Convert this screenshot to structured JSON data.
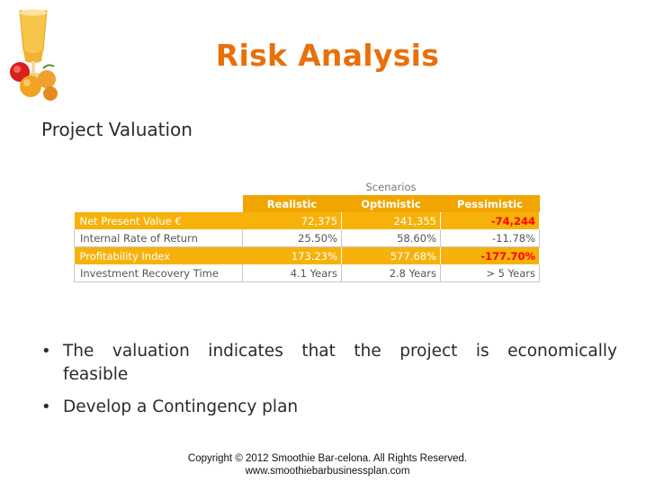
{
  "slide": {
    "title": "Risk Analysis",
    "subtitle": "Project Valuation"
  },
  "table": {
    "group_header": "Scenarios",
    "columns": [
      "Realistic",
      "Optimistic",
      "Pessimistic"
    ],
    "rows": [
      {
        "label": "Net Present Value €",
        "values": [
          "72,375",
          "241,355",
          "-74,244"
        ],
        "style": "orange"
      },
      {
        "label": "Internal Rate of Return",
        "values": [
          "25.50%",
          "58.60%",
          "-11.78%"
        ],
        "style": "white"
      },
      {
        "label": "Profitability Index",
        "values": [
          "173.23%",
          "577.68%",
          "-177.70%"
        ],
        "style": "orange"
      },
      {
        "label": "Investment Recovery Time",
        "values": [
          "4.1 Years",
          "2.8 Years",
          "> 5 Years"
        ],
        "style": "white"
      }
    ]
  },
  "bullets": [
    "The valuation indicates that the project is economically feasible",
    "Develop a Contingency plan"
  ],
  "footer": {
    "line1": "Copyright © 2012 Smoothie Bar-celona. All Rights Reserved.",
    "line2": "www.smoothiebarbusinessplan.com"
  },
  "colors": {
    "title": "#e8700a",
    "header_fill": "#f0a500",
    "row_fill": "#f6b20a",
    "negative_highlight": "#ff0000"
  }
}
